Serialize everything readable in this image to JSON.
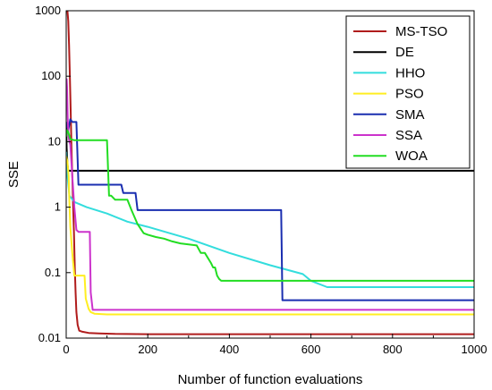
{
  "chart_data": {
    "type": "line",
    "title": "",
    "xlabel": "Number of function evaluations",
    "ylabel": "SSE",
    "xlim": [
      0,
      1000
    ],
    "ylim": [
      0.01,
      1000
    ],
    "yscale": "log",
    "xticks": [
      0,
      200,
      400,
      600,
      800,
      1000
    ],
    "xtick_labels": [
      "0",
      "200",
      "400",
      "600",
      "800",
      "1000"
    ],
    "yticks": [
      0.01,
      0.1,
      1,
      10,
      100,
      1000
    ],
    "ytick_labels": [
      "0.01",
      "0.1",
      "1",
      "10",
      "100",
      "1000"
    ],
    "grid": false,
    "legend_position": "top-right",
    "series": [
      {
        "name": "MS-TSO",
        "color": "#b01c1c",
        "x": [
          0,
          3,
          5,
          7,
          9,
          11,
          13,
          15,
          17,
          19,
          21,
          23,
          25,
          28,
          32,
          40,
          55,
          80,
          120,
          200,
          1000
        ],
        "y": [
          1000,
          1000,
          700,
          300,
          100,
          30,
          8,
          3,
          1,
          0.4,
          0.12,
          0.05,
          0.025,
          0.016,
          0.013,
          0.0125,
          0.012,
          0.0118,
          0.0116,
          0.0115,
          0.0115
        ]
      },
      {
        "name": "DE",
        "color": "#000000",
        "x": [
          0,
          1,
          3,
          5,
          1000
        ],
        "y": [
          20,
          8,
          4.5,
          3.6,
          3.6
        ]
      },
      {
        "name": "HHO",
        "color": "#33dddd",
        "x": [
          0,
          3,
          8,
          20,
          50,
          100,
          150,
          200,
          300,
          400,
          500,
          580,
          600,
          640,
          1000
        ],
        "y": [
          7,
          3,
          1.5,
          1.2,
          1.0,
          0.8,
          0.6,
          0.5,
          0.33,
          0.2,
          0.13,
          0.095,
          0.075,
          0.06,
          0.06
        ]
      },
      {
        "name": "PSO",
        "color": "#ffee22",
        "x": [
          0,
          3,
          6,
          8,
          10,
          15,
          20,
          25,
          30,
          40,
          45,
          48,
          55,
          60,
          70,
          100,
          1000
        ],
        "y": [
          6,
          5,
          3,
          1.2,
          0.5,
          0.2,
          0.09,
          0.09,
          0.09,
          0.09,
          0.09,
          0.04,
          0.028,
          0.025,
          0.0235,
          0.023,
          0.023
        ]
      },
      {
        "name": "SMA",
        "color": "#1a2eb0",
        "x": [
          0,
          5,
          10,
          15,
          20,
          25,
          30,
          60,
          80,
          100,
          135,
          140,
          170,
          175,
          200,
          400,
          527,
          530,
          1000
        ],
        "y": [
          20,
          15,
          22,
          20,
          20,
          20,
          2.2,
          2.2,
          2.2,
          2.2,
          2.2,
          1.65,
          1.65,
          0.9,
          0.9,
          0.9,
          0.9,
          0.038,
          0.038
        ]
      },
      {
        "name": "SSA",
        "color": "#cc33cc",
        "x": [
          0,
          1,
          2,
          4,
          6,
          8,
          10,
          15,
          20,
          25,
          30,
          40,
          50,
          58,
          60,
          65,
          1000
        ],
        "y": [
          30,
          90,
          70,
          20,
          12,
          10,
          9,
          3,
          1,
          0.45,
          0.42,
          0.42,
          0.42,
          0.42,
          0.05,
          0.027,
          0.027
        ]
      },
      {
        "name": "WOA",
        "color": "#22dd22",
        "x": [
          0,
          2,
          5,
          10,
          20,
          50,
          80,
          100,
          105,
          110,
          120,
          150,
          160,
          175,
          190,
          200,
          220,
          240,
          260,
          280,
          300,
          320,
          330,
          340,
          355,
          360,
          365,
          370,
          375,
          380,
          1000
        ],
        "y": [
          12,
          15,
          14,
          11,
          10.5,
          10.5,
          10.5,
          10.5,
          1.5,
          1.5,
          1.3,
          1.3,
          0.9,
          0.55,
          0.4,
          0.38,
          0.35,
          0.33,
          0.3,
          0.28,
          0.27,
          0.26,
          0.2,
          0.2,
          0.14,
          0.12,
          0.12,
          0.09,
          0.08,
          0.075,
          0.075
        ]
      }
    ]
  }
}
